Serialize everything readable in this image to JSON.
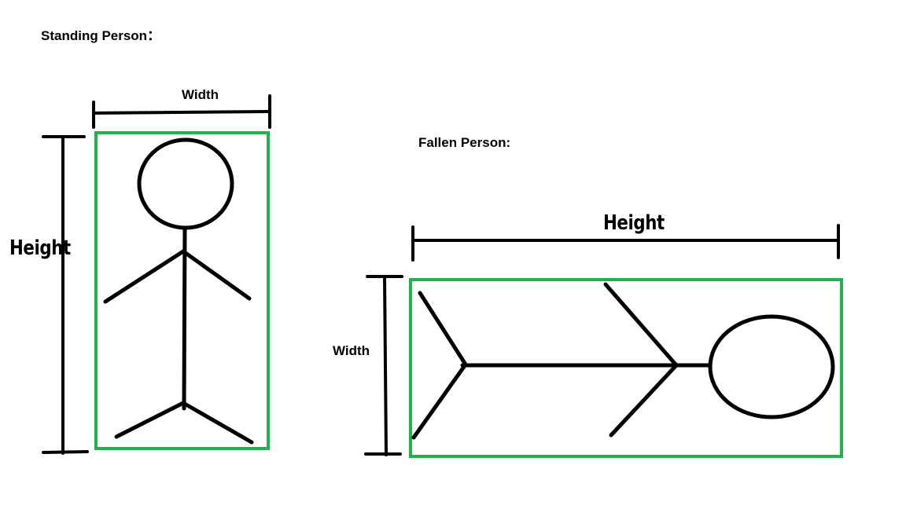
{
  "standing": {
    "title": "Standing Person：",
    "width_label": "Width",
    "height_label": "Height"
  },
  "fallen": {
    "title": "Fallen Person:",
    "width_label": "Width",
    "height_label": "Height"
  },
  "colors": {
    "box": "#22b14c",
    "ink": "#000000",
    "background": "#ffffff"
  }
}
